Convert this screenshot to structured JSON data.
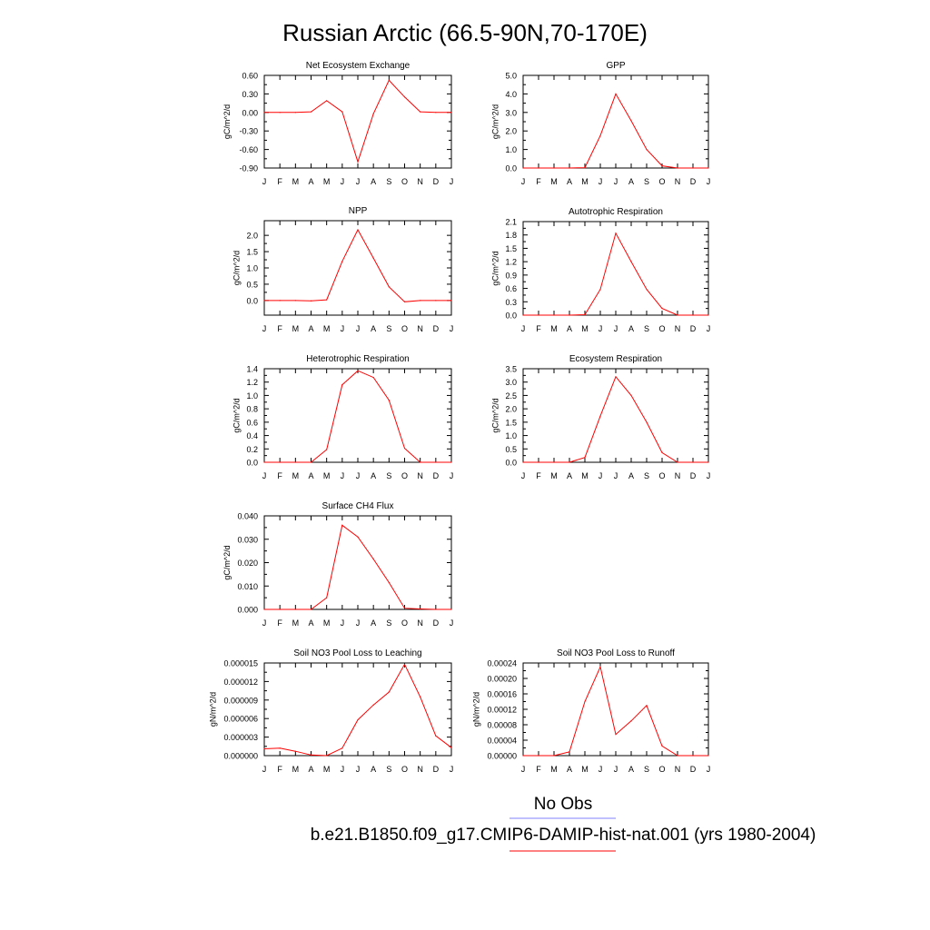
{
  "page": {
    "title": "Russian Arctic (66.5-90N,70-170E)",
    "legend": {
      "obs_label": "No Obs",
      "obs_color": "#8080ff",
      "model_label": "b.e21.B1850.f09_g17.CMIP6-DAMIP-hist-nat.001 (yrs 1980-2004)",
      "model_color": "#ff0000"
    }
  },
  "chart_data": [
    {
      "type": "line",
      "title": "Net Ecosystem Exchange",
      "ylabel": "gC/m^2/d",
      "categories": [
        "J",
        "F",
        "M",
        "A",
        "M",
        "J",
        "J",
        "A",
        "S",
        "O",
        "N",
        "D",
        "J"
      ],
      "ylim": [
        -0.9,
        0.6
      ],
      "yticks": [
        "-0.90",
        "-0.60",
        "-0.30",
        "0.00",
        "0.30",
        "0.60"
      ],
      "series": [
        {
          "values": [
            0.0,
            0.0,
            0.0,
            0.01,
            0.19,
            0.01,
            -0.8,
            -0.02,
            0.52,
            0.25,
            0.01,
            0.0,
            0.0
          ]
        }
      ]
    },
    {
      "type": "line",
      "title": "GPP",
      "ylabel": "gC/m^2/d",
      "categories": [
        "J",
        "F",
        "M",
        "A",
        "M",
        "J",
        "J",
        "A",
        "S",
        "O",
        "N",
        "D",
        "J"
      ],
      "ylim": [
        0,
        5
      ],
      "yticks": [
        "0.0",
        "1.0",
        "2.0",
        "3.0",
        "4.0",
        "5.0"
      ],
      "series": [
        {
          "values": [
            0.0,
            0.0,
            0.0,
            0.0,
            0.02,
            1.75,
            4.0,
            2.55,
            1.0,
            0.12,
            0.0,
            0.0,
            0.0
          ]
        }
      ]
    },
    {
      "type": "line",
      "title": "NPP",
      "ylabel": "gC/m^2/d",
      "categories": [
        "J",
        "F",
        "M",
        "A",
        "M",
        "J",
        "J",
        "A",
        "S",
        "O",
        "N",
        "D",
        "J"
      ],
      "ylim": [
        -0.45,
        2.45
      ],
      "yticks": [
        "0.0",
        "0.5",
        "1.0",
        "1.5",
        "2.0"
      ],
      "series": [
        {
          "values": [
            0.0,
            0.0,
            0.0,
            -0.01,
            0.02,
            1.2,
            2.17,
            1.3,
            0.42,
            -0.04,
            0.0,
            0.0,
            0.0
          ]
        }
      ]
    },
    {
      "type": "line",
      "title": "Autotrophic Respiration",
      "ylabel": "gC/m^2/d",
      "categories": [
        "J",
        "F",
        "M",
        "A",
        "M",
        "J",
        "J",
        "A",
        "S",
        "O",
        "N",
        "D",
        "J"
      ],
      "ylim": [
        0,
        2.1
      ],
      "yticks": [
        "0.0",
        "0.3",
        "0.6",
        "0.9",
        "1.2",
        "1.5",
        "1.8",
        "2.1"
      ],
      "series": [
        {
          "values": [
            0.0,
            0.0,
            0.0,
            0.0,
            0.01,
            0.58,
            1.84,
            1.2,
            0.58,
            0.15,
            0.0,
            0.0,
            0.0
          ]
        }
      ]
    },
    {
      "type": "line",
      "title": "Heterotrophic Respiration",
      "ylabel": "gC/m^2/d",
      "categories": [
        "J",
        "F",
        "M",
        "A",
        "M",
        "J",
        "J",
        "A",
        "S",
        "O",
        "N",
        "D",
        "J"
      ],
      "ylim": [
        0,
        1.4
      ],
      "yticks": [
        "0.0",
        "0.2",
        "0.4",
        "0.6",
        "0.8",
        "1.0",
        "1.2",
        "1.4"
      ],
      "series": [
        {
          "values": [
            0.0,
            0.0,
            0.0,
            0.0,
            0.19,
            1.16,
            1.37,
            1.27,
            0.93,
            0.21,
            0.0,
            0.0,
            0.0
          ]
        }
      ]
    },
    {
      "type": "line",
      "title": "Ecosystem Respiration",
      "ylabel": "gC/m^2/d",
      "categories": [
        "J",
        "F",
        "M",
        "A",
        "M",
        "J",
        "J",
        "A",
        "S",
        "O",
        "N",
        "D",
        "J"
      ],
      "ylim": [
        0,
        3.5
      ],
      "yticks": [
        "0.0",
        "0.5",
        "1.0",
        "1.5",
        "2.0",
        "2.5",
        "3.0",
        "3.5"
      ],
      "series": [
        {
          "values": [
            0.0,
            0.0,
            0.0,
            0.0,
            0.18,
            1.73,
            3.2,
            2.5,
            1.5,
            0.36,
            0.0,
            0.0,
            0.0
          ]
        }
      ]
    },
    {
      "type": "line",
      "title": "Surface CH4 Flux",
      "ylabel": "gC/m^2/d",
      "categories": [
        "J",
        "F",
        "M",
        "A",
        "M",
        "J",
        "J",
        "A",
        "S",
        "O",
        "N",
        "D",
        "J"
      ],
      "ylim": [
        0,
        0.04
      ],
      "yticks": [
        "0.000",
        "0.010",
        "0.020",
        "0.030",
        "0.040"
      ],
      "series": [
        {
          "values": [
            0.0,
            0.0,
            0.0,
            0.0,
            0.005,
            0.036,
            0.031,
            0.0215,
            0.0115,
            0.0005,
            0.0002,
            0.0,
            0.0
          ]
        }
      ]
    },
    {
      "type": "line",
      "title": "Soil NO3 Pool Loss to Leaching",
      "ylabel": "gN/m^2/d",
      "categories": [
        "J",
        "F",
        "M",
        "A",
        "M",
        "J",
        "J",
        "A",
        "S",
        "O",
        "N",
        "D",
        "J"
      ],
      "ylim": [
        0,
        1.5e-05
      ],
      "yticks": [
        "0.000000",
        "0.000003",
        "0.000006",
        "0.000009",
        "0.000012",
        "0.000015"
      ],
      "series": [
        {
          "values": [
            1.1e-06,
            1.2e-06,
            7e-07,
            1e-07,
            0.0,
            1.2e-06,
            5.8e-06,
            8.2e-06,
            1.03e-05,
            1.48e-05,
            9.5e-06,
            3.2e-06,
            1.3e-06
          ]
        }
      ]
    },
    {
      "type": "line",
      "title": "Soil NO3 Pool Loss to Runoff",
      "ylabel": "gN/m^2/d",
      "categories": [
        "J",
        "F",
        "M",
        "A",
        "M",
        "J",
        "J",
        "A",
        "S",
        "O",
        "N",
        "D",
        "J"
      ],
      "ylim": [
        0,
        0.00024
      ],
      "yticks": [
        "0.00000",
        "0.00004",
        "0.00008",
        "0.00012",
        "0.00016",
        "0.00020",
        "0.00024"
      ],
      "series": [
        {
          "values": [
            0.0,
            0.0,
            0.0,
            1e-05,
            0.00014,
            0.00023,
            5.5e-05,
            9e-05,
            0.00013,
            2.5e-05,
            0.0,
            0.0,
            0.0
          ]
        }
      ]
    }
  ]
}
